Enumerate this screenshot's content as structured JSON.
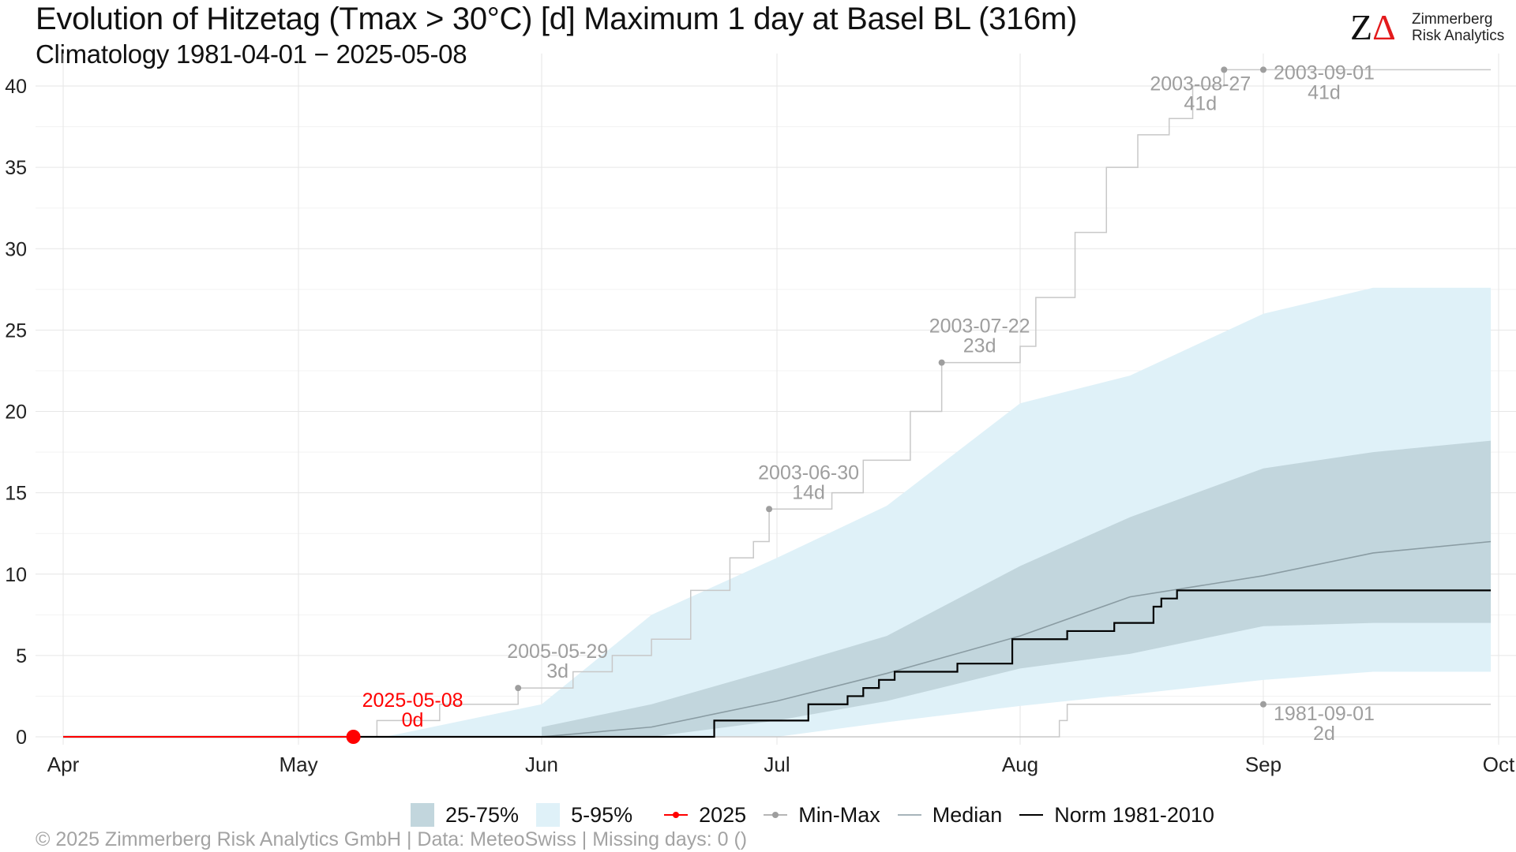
{
  "header": {
    "title": "Evolution of Hitzetag (Tmax > 30°C) [d] Maximum 1 day at Basel  BL (316m)",
    "subtitle": "Climatology 1981-04-01 − 2025-05-08"
  },
  "logo": {
    "mark_z": "Z",
    "mark_delta": "Δ",
    "line1": "Zimmerberg",
    "line2": "Risk Analytics"
  },
  "legend": {
    "band_iqr": "25-75%",
    "band_90": "5-95%",
    "current": "2025",
    "minmax": "Min-Max",
    "median": "Median",
    "norm": "Norm 1981-2010"
  },
  "footer": "©  2025 Zimmerberg Risk Analytics GmbH | Data: MeteoSwiss | Missing days: 0 ()",
  "colors": {
    "band_90": "#dff1f8",
    "band_iqr": "#c2d6dd",
    "current": "#ff0000",
    "max_line": "#c8c8c8",
    "median": "#8a9ca3",
    "norm": "#000000",
    "annotation": "#9e9e9e"
  },
  "chart_data": {
    "type": "area",
    "xlabel": "",
    "ylabel": "",
    "x_ticks": [
      "Apr",
      "May",
      "Jun",
      "Jul",
      "Aug",
      "Sep",
      "Oct"
    ],
    "x_tick_dates": [
      "04-01",
      "05-01",
      "06-01",
      "07-01",
      "08-01",
      "09-01",
      "10-01"
    ],
    "x_range": [
      "04-01",
      "10-01"
    ],
    "ylim": [
      0,
      42
    ],
    "y_ticks": [
      0,
      5,
      10,
      15,
      20,
      25,
      30,
      35,
      40
    ],
    "grid": true,
    "legend_position": "bottom",
    "series": [
      {
        "name": "5-95%",
        "kind": "band",
        "x": [
          "06-01",
          "06-15",
          "07-01",
          "07-15",
          "08-01",
          "08-15",
          "09-01",
          "09-15",
          "09-30"
        ],
        "low": [
          0,
          0,
          0,
          0.9,
          1.9,
          2.6,
          3.5,
          4.0,
          4.0
        ],
        "high": [
          2.0,
          7.5,
          11.0,
          14.2,
          20.5,
          22.2,
          26.0,
          27.6,
          27.6
        ]
      },
      {
        "name": "25-75%",
        "kind": "band",
        "x": [
          "06-01",
          "06-15",
          "07-01",
          "07-15",
          "08-01",
          "08-15",
          "09-01",
          "09-15",
          "09-30"
        ],
        "low": [
          0,
          0,
          1.0,
          2.2,
          4.2,
          5.1,
          6.8,
          7.0,
          7.0
        ],
        "high": [
          0.6,
          2.0,
          4.2,
          6.2,
          10.5,
          13.5,
          16.5,
          17.5,
          18.2
        ]
      },
      {
        "name": "Median",
        "kind": "line",
        "x": [
          "06-01",
          "06-15",
          "07-01",
          "07-15",
          "08-01",
          "08-15",
          "09-01",
          "09-15",
          "09-30"
        ],
        "y": [
          0,
          0.6,
          2.2,
          3.9,
          6.2,
          8.6,
          9.9,
          11.3,
          12.0
        ]
      },
      {
        "name": "Norm 1981-2010",
        "kind": "step",
        "x": [
          "04-01",
          "06-22",
          "06-23",
          "07-02",
          "07-05",
          "07-10",
          "07-12",
          "07-14",
          "07-16",
          "07-21",
          "07-24",
          "07-31",
          "08-07",
          "08-13",
          "08-18",
          "08-19",
          "08-21",
          "09-30"
        ],
        "y": [
          0,
          0,
          1,
          1,
          2,
          2.5,
          3,
          3.5,
          4,
          4,
          4.5,
          6,
          6.5,
          7,
          8,
          8.5,
          9,
          9
        ]
      },
      {
        "name": "Min-Max",
        "kind": "step-max",
        "x": [
          "04-01",
          "05-11",
          "05-19",
          "05-29",
          "06-05",
          "06-10",
          "06-15",
          "06-20",
          "06-25",
          "06-28",
          "06-30",
          "07-08",
          "07-12",
          "07-18",
          "07-22",
          "08-01",
          "08-03",
          "08-08",
          "08-12",
          "08-16",
          "08-20",
          "08-23",
          "08-27",
          "09-30"
        ],
        "y": [
          0,
          1,
          2,
          3,
          4,
          5,
          6,
          9,
          11,
          12,
          14,
          15,
          17,
          20,
          23,
          24,
          27,
          31,
          35,
          37,
          38,
          40,
          41,
          41
        ]
      },
      {
        "name": "Min-Max",
        "kind": "step-min",
        "x": [
          "04-01",
          "08-05",
          "08-06",
          "08-07",
          "09-30"
        ],
        "y": [
          0,
          0,
          1,
          2,
          2
        ]
      },
      {
        "name": "2025",
        "kind": "current",
        "x": [
          "04-01",
          "05-08"
        ],
        "y": [
          0,
          0
        ]
      }
    ],
    "annotations": [
      {
        "date": "2025-05-08",
        "x": "05-08",
        "y": 0,
        "label_date": "2025-05-08",
        "label_value": "0d",
        "color": "red"
      },
      {
        "date": "2005-05-29",
        "x": "05-29",
        "y": 3,
        "label_date": "2005-05-29",
        "label_value": "3d",
        "color": "grey"
      },
      {
        "date": "2003-06-30",
        "x": "06-30",
        "y": 14,
        "label_date": "2003-06-30",
        "label_value": "14d",
        "color": "grey"
      },
      {
        "date": "2003-07-22",
        "x": "07-22",
        "y": 23,
        "label_date": "2003-07-22",
        "label_value": "23d",
        "color": "grey"
      },
      {
        "date": "2003-08-27",
        "x": "08-27",
        "y": 41,
        "label_date": "2003-08-27",
        "label_value": "41d",
        "color": "grey"
      },
      {
        "date": "2003-09-01",
        "x": "09-01",
        "y": 41,
        "label_date": "2003-09-01",
        "label_value": "41d",
        "color": "grey"
      },
      {
        "date": "1981-09-01",
        "x": "09-01",
        "y": 2,
        "label_date": "1981-09-01",
        "label_value": "2d",
        "color": "grey"
      }
    ]
  }
}
